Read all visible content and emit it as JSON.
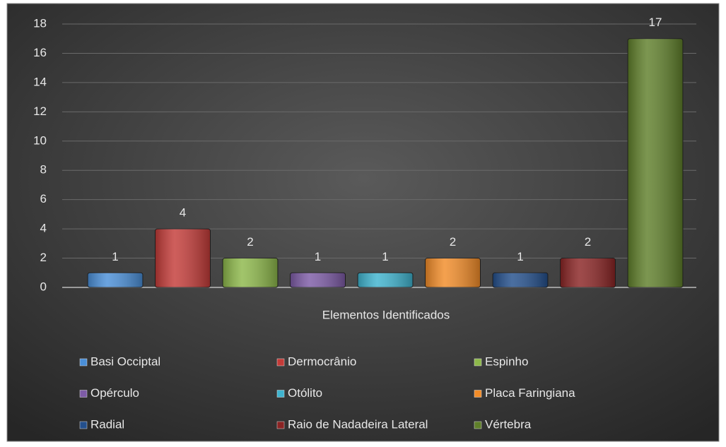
{
  "chart_data": {
    "type": "bar",
    "x_label": "Elementos Identificados",
    "categories": [
      "Elementos Identificados"
    ],
    "series": [
      {
        "name": "Basi Occiptal",
        "color": "#4a8fd8",
        "values": [
          1
        ]
      },
      {
        "name": "Dermocrânio",
        "color": "#c43b38",
        "values": [
          4
        ]
      },
      {
        "name": "Espinho",
        "color": "#8db84a",
        "values": [
          2
        ]
      },
      {
        "name": "Opérculo",
        "color": "#7d5ba6",
        "values": [
          1
        ]
      },
      {
        "name": "Otólito",
        "color": "#3fb4cf",
        "values": [
          1
        ]
      },
      {
        "name": "Placa Faringiana",
        "color": "#f28c28",
        "values": [
          2
        ]
      },
      {
        "name": "Radial",
        "color": "#234f8c",
        "values": [
          1
        ]
      },
      {
        "name": "Raio de Nadadeira Lateral",
        "color": "#8a2424",
        "values": [
          2
        ]
      },
      {
        "name": "Vértebra",
        "color": "#5f7f2a",
        "values": [
          17
        ]
      }
    ],
    "ylim": [
      0,
      18
    ],
    "yticks": [
      0,
      2,
      4,
      6,
      8,
      10,
      12,
      14,
      16,
      18
    ],
    "grid": true,
    "legend": "bottom"
  }
}
